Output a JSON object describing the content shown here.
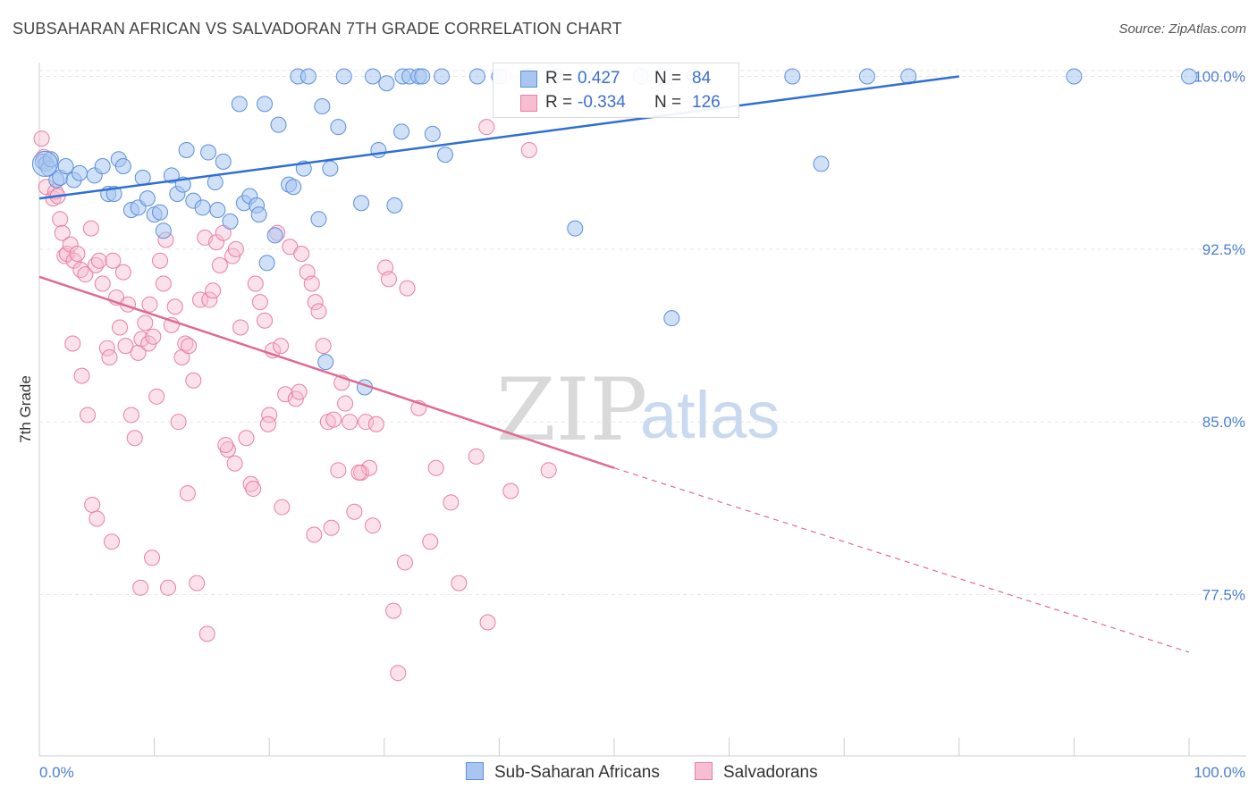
{
  "header": {
    "title": "SUBSAHARAN AFRICAN VS SALVADORAN 7TH GRADE CORRELATION CHART",
    "source": "Source: ZipAtlas.com"
  },
  "watermark": {
    "zip": "ZIP",
    "atlas": "atlas"
  },
  "stats": {
    "row1": {
      "r_label": "R =",
      "r_value": "0.427",
      "n_label": "N =",
      "n_value": "84"
    },
    "row2": {
      "r_label": "R =",
      "r_value": "-0.334",
      "n_label": "N =",
      "n_value": "126"
    }
  },
  "legend": {
    "item1": "Sub-Saharan Africans",
    "item2": "Salvadorans"
  },
  "colors": {
    "blue_fill": "#a8c6f0",
    "blue_stroke": "#5b8fdd",
    "blue_line": "#2e6fd3",
    "pink_fill": "#f7bdd0",
    "pink_stroke": "#e87fa3",
    "pink_line": "#e06a93",
    "grid": "#e5e5e5",
    "tick_text": "#4a7fd4"
  },
  "chart_data": {
    "type": "scatter",
    "title": "SUBSAHARAN AFRICAN VS SALVADORAN 7TH GRADE CORRELATION CHART",
    "xlabel": "",
    "ylabel": "7th Grade",
    "xlim": [
      0,
      100
    ],
    "ylim": [
      70.5,
      100.6
    ],
    "x_tick_labels": [
      "0.0%",
      "100.0%"
    ],
    "y_ticks": [
      77.5,
      85.0,
      92.5,
      100.0
    ],
    "y_tick_labels": [
      "77.5%",
      "85.0%",
      "92.5%",
      "100.0%"
    ],
    "grid": true,
    "legend_position": "bottom-center",
    "series": [
      {
        "name": "Sub-Saharan Africans",
        "R": 0.427,
        "N": 84,
        "trend": {
          "x": [
            0,
            80
          ],
          "y": [
            94.7,
            100.0
          ]
        },
        "points": [
          [
            0.3,
            96.3
          ],
          [
            0.6,
            96.2
          ],
          [
            0.8,
            96.0
          ],
          [
            1.0,
            96.4
          ],
          [
            1.5,
            95.5
          ],
          [
            1.8,
            95.6
          ],
          [
            2.3,
            96.1
          ],
          [
            3.0,
            95.5
          ],
          [
            3.5,
            95.8
          ],
          [
            4.8,
            95.7
          ],
          [
            5.5,
            96.1
          ],
          [
            6.0,
            94.9
          ],
          [
            6.5,
            94.9
          ],
          [
            6.9,
            96.4
          ],
          [
            7.3,
            96.1
          ],
          [
            8.0,
            94.2
          ],
          [
            8.6,
            94.3
          ],
          [
            9.0,
            95.6
          ],
          [
            9.4,
            94.7
          ],
          [
            10.0,
            94.0
          ],
          [
            10.5,
            94.1
          ],
          [
            10.8,
            93.3
          ],
          [
            11.5,
            95.7
          ],
          [
            12.0,
            94.9
          ],
          [
            12.5,
            95.3
          ],
          [
            12.8,
            96.8
          ],
          [
            13.4,
            94.6
          ],
          [
            14.2,
            94.3
          ],
          [
            14.7,
            96.7
          ],
          [
            15.3,
            95.4
          ],
          [
            15.5,
            94.2
          ],
          [
            16.0,
            96.3
          ],
          [
            16.6,
            93.7
          ],
          [
            17.4,
            98.8
          ],
          [
            17.8,
            94.5
          ],
          [
            18.3,
            94.8
          ],
          [
            18.9,
            94.4
          ],
          [
            19.1,
            94.0
          ],
          [
            19.8,
            91.9
          ],
          [
            19.6,
            98.8
          ],
          [
            20.5,
            93.1
          ],
          [
            20.8,
            97.9
          ],
          [
            21.7,
            95.3
          ],
          [
            22.1,
            95.2
          ],
          [
            22.5,
            100.0
          ],
          [
            23.0,
            96.0
          ],
          [
            23.4,
            100.0
          ],
          [
            24.3,
            93.8
          ],
          [
            24.6,
            98.7
          ],
          [
            24.9,
            87.6
          ],
          [
            25.3,
            96.0
          ],
          [
            26.0,
            97.8
          ],
          [
            26.5,
            100.0
          ],
          [
            28.0,
            94.5
          ],
          [
            28.3,
            86.5
          ],
          [
            29.0,
            100.0
          ],
          [
            29.5,
            96.8
          ],
          [
            30.2,
            99.7
          ],
          [
            30.9,
            94.4
          ],
          [
            31.5,
            97.6
          ],
          [
            31.6,
            100.0
          ],
          [
            32.2,
            100.0
          ],
          [
            33.0,
            100.0
          ],
          [
            33.3,
            100.0
          ],
          [
            34.2,
            97.5
          ],
          [
            35.0,
            100.0
          ],
          [
            35.3,
            96.6
          ],
          [
            38.1,
            100.0
          ],
          [
            40.0,
            100.0
          ],
          [
            42.5,
            100.0
          ],
          [
            45.0,
            100.0
          ],
          [
            46.6,
            93.4
          ],
          [
            47.5,
            100.0
          ],
          [
            49.6,
            100.0
          ],
          [
            52.3,
            100.0
          ],
          [
            54.3,
            100.0
          ],
          [
            55.0,
            89.5
          ],
          [
            57.0,
            100.0
          ],
          [
            65.5,
            100.0
          ],
          [
            68.0,
            96.2
          ],
          [
            72.0,
            100.0
          ],
          [
            75.6,
            100.0
          ],
          [
            90.0,
            100.0
          ],
          [
            100.0,
            100.0
          ]
        ]
      },
      {
        "name": "Salvadorans",
        "R": -0.334,
        "N": 126,
        "trend": {
          "x": [
            0,
            50
          ],
          "y": [
            91.3,
            83.0
          ],
          "dash_to": [
            100,
            75.0
          ]
        },
        "points": [
          [
            0.2,
            97.3
          ],
          [
            0.4,
            96.5
          ],
          [
            0.6,
            95.2
          ],
          [
            1.2,
            94.7
          ],
          [
            1.4,
            95.0
          ],
          [
            1.6,
            94.8
          ],
          [
            1.8,
            93.8
          ],
          [
            2.0,
            93.2
          ],
          [
            2.2,
            92.2
          ],
          [
            2.4,
            92.3
          ],
          [
            2.7,
            92.7
          ],
          [
            3.0,
            92.0
          ],
          [
            3.3,
            92.3
          ],
          [
            3.6,
            91.6
          ],
          [
            4.0,
            91.4
          ],
          [
            4.5,
            93.4
          ],
          [
            4.9,
            91.8
          ],
          [
            5.2,
            92.0
          ],
          [
            5.5,
            91.0
          ],
          [
            5.9,
            88.2
          ],
          [
            6.1,
            87.8
          ],
          [
            6.4,
            92.0
          ],
          [
            6.7,
            90.4
          ],
          [
            7.0,
            89.1
          ],
          [
            7.3,
            91.5
          ],
          [
            7.7,
            90.1
          ],
          [
            7.5,
            88.3
          ],
          [
            8.0,
            85.3
          ],
          [
            8.3,
            84.3
          ],
          [
            8.6,
            88.0
          ],
          [
            8.9,
            88.6
          ],
          [
            9.2,
            89.3
          ],
          [
            9.5,
            88.4
          ],
          [
            9.6,
            90.1
          ],
          [
            9.9,
            88.7
          ],
          [
            10.2,
            86.1
          ],
          [
            10.5,
            92.0
          ],
          [
            10.8,
            91.0
          ],
          [
            11.0,
            92.9
          ],
          [
            11.5,
            89.2
          ],
          [
            11.8,
            90.0
          ],
          [
            12.1,
            85.0
          ],
          [
            12.4,
            87.8
          ],
          [
            12.7,
            88.4
          ],
          [
            13.0,
            88.3
          ],
          [
            13.4,
            86.8
          ],
          [
            13.7,
            78.0
          ],
          [
            14.0,
            90.3
          ],
          [
            14.4,
            93.0
          ],
          [
            14.8,
            90.3
          ],
          [
            15.1,
            90.7
          ],
          [
            15.4,
            92.8
          ],
          [
            15.7,
            91.8
          ],
          [
            16.0,
            93.2
          ],
          [
            16.4,
            83.8
          ],
          [
            16.8,
            92.2
          ],
          [
            17.1,
            92.5
          ],
          [
            17.5,
            89.1
          ],
          [
            18.0,
            84.3
          ],
          [
            18.4,
            82.3
          ],
          [
            18.8,
            91.0
          ],
          [
            19.2,
            90.2
          ],
          [
            19.6,
            89.4
          ],
          [
            20.0,
            85.3
          ],
          [
            20.3,
            88.1
          ],
          [
            20.7,
            93.2
          ],
          [
            21.0,
            88.3
          ],
          [
            21.4,
            86.2
          ],
          [
            21.8,
            92.6
          ],
          [
            22.3,
            86.0
          ],
          [
            22.8,
            92.3
          ],
          [
            23.3,
            91.5
          ],
          [
            23.7,
            91.0
          ],
          [
            24.0,
            90.2
          ],
          [
            24.3,
            89.8
          ],
          [
            24.7,
            88.3
          ],
          [
            25.1,
            85.0
          ],
          [
            25.6,
            85.1
          ],
          [
            26.0,
            82.9
          ],
          [
            26.6,
            85.8
          ],
          [
            27.0,
            85.0
          ],
          [
            27.4,
            81.1
          ],
          [
            28.0,
            82.8
          ],
          [
            28.4,
            85.0
          ],
          [
            28.7,
            83.0
          ],
          [
            29.3,
            84.9
          ],
          [
            30.1,
            91.7
          ],
          [
            30.4,
            91.2
          ],
          [
            30.8,
            76.8
          ],
          [
            31.2,
            74.1
          ],
          [
            32.0,
            90.8
          ],
          [
            33.0,
            85.6
          ],
          [
            34.5,
            83.0
          ],
          [
            36.5,
            78.0
          ],
          [
            38.0,
            83.5
          ],
          [
            38.9,
            97.8
          ],
          [
            40.4,
            100.0
          ],
          [
            42.6,
            96.8
          ],
          [
            44.3,
            82.9
          ],
          [
            2.9,
            88.4
          ],
          [
            3.7,
            87.0
          ],
          [
            4.2,
            85.3
          ],
          [
            4.6,
            81.4
          ],
          [
            5.0,
            80.8
          ],
          [
            6.3,
            79.8
          ],
          [
            8.8,
            77.8
          ],
          [
            9.8,
            79.1
          ],
          [
            11.2,
            77.8
          ],
          [
            12.9,
            81.9
          ],
          [
            14.6,
            75.8
          ],
          [
            16.2,
            84.0
          ],
          [
            17.0,
            83.2
          ],
          [
            18.6,
            82.1
          ],
          [
            19.9,
            84.9
          ],
          [
            21.1,
            81.3
          ],
          [
            22.6,
            86.3
          ],
          [
            23.9,
            80.1
          ],
          [
            25.4,
            80.4
          ],
          [
            26.3,
            86.7
          ],
          [
            27.8,
            82.8
          ],
          [
            29.0,
            80.5
          ],
          [
            31.8,
            78.9
          ],
          [
            34.0,
            79.8
          ],
          [
            35.8,
            81.5
          ],
          [
            39.0,
            76.3
          ],
          [
            41.0,
            82.0
          ]
        ]
      }
    ]
  }
}
